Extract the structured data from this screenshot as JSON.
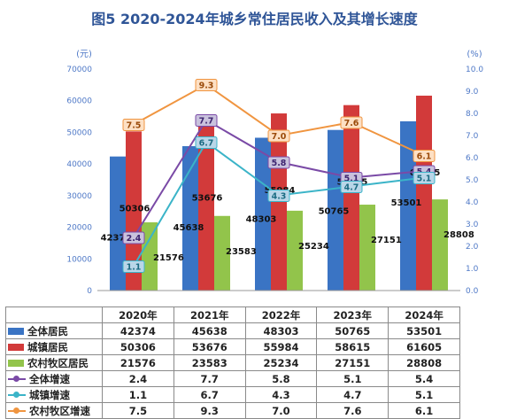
{
  "title": "图5  2020-2024年城乡常住居民收入及其增长速度",
  "chart_data": {
    "type": "bar",
    "title": "图5  2020-2024年城乡常住居民收入及其增长速度",
    "categories": [
      "2020年",
      "2021年",
      "2022年",
      "2023年",
      "2024年"
    ],
    "left_axis": {
      "unit": "(元)",
      "ylim": [
        0,
        70000
      ],
      "ticks": [
        "0",
        "10000",
        "20000",
        "30000",
        "40000",
        "50000",
        "60000",
        "70000"
      ]
    },
    "right_axis": {
      "unit": "(%)",
      "ylim": [
        0,
        10
      ],
      "ticks": [
        "0.0",
        "1.0",
        "2.0",
        "3.0",
        "4.0",
        "5.0",
        "6.0",
        "7.0",
        "8.0",
        "9.0",
        "10.0"
      ]
    },
    "bar_series": [
      {
        "name": "全体居民",
        "values": [
          42374,
          45638,
          48303,
          50765,
          53501
        ],
        "color": "#3a74c4"
      },
      {
        "name": "城镇居民",
        "values": [
          50306,
          53676,
          55984,
          58615,
          61605
        ],
        "color": "#d23a3a"
      },
      {
        "name": "农村牧区居民",
        "values": [
          21576,
          23583,
          25234,
          27151,
          28808
        ],
        "color": "#92c44b"
      }
    ],
    "line_series": [
      {
        "name": "全体增速",
        "values": [
          2.4,
          7.7,
          5.8,
          5.1,
          5.4
        ],
        "color": "#7a4aa6"
      },
      {
        "name": "城镇增速",
        "values": [
          1.1,
          6.7,
          4.3,
          4.7,
          5.1
        ],
        "color": "#3bb4c8"
      },
      {
        "name": "农村牧区增速",
        "values": [
          7.5,
          9.3,
          7.0,
          7.6,
          6.1
        ],
        "color": "#f09540"
      }
    ],
    "table": [
      [
        "42374",
        "45638",
        "48303",
        "50765",
        "53501"
      ],
      [
        "50306",
        "53676",
        "55984",
        "58615",
        "61605"
      ],
      [
        "21576",
        "23583",
        "25234",
        "27151",
        "28808"
      ],
      [
        "2.4",
        "7.7",
        "5.8",
        "5.1",
        "5.4"
      ],
      [
        "1.1",
        "6.7",
        "4.3",
        "4.7",
        "5.1"
      ],
      [
        "7.5",
        "9.3",
        "7.0",
        "7.6",
        "6.1"
      ]
    ],
    "grid": false
  }
}
